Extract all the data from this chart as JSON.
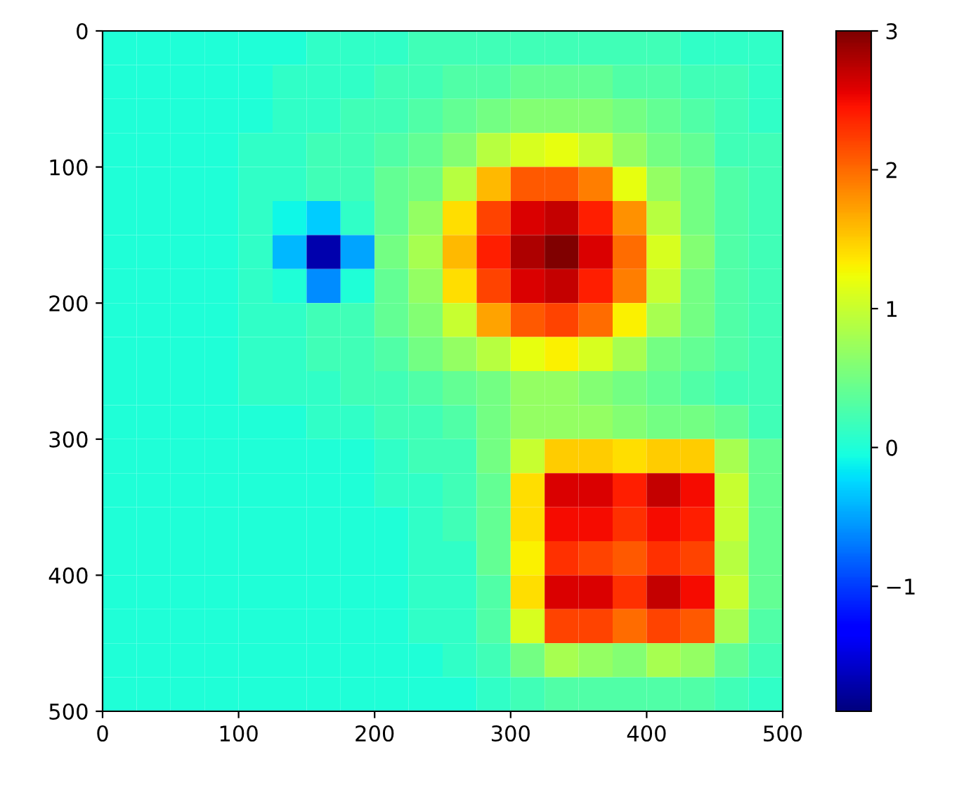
{
  "chart_data": {
    "type": "heatmap",
    "xlim": [
      0,
      500
    ],
    "ylim": [
      500,
      0
    ],
    "xticks": [
      0,
      100,
      200,
      300,
      400,
      500
    ],
    "yticks": [
      0,
      100,
      200,
      300,
      400,
      500
    ],
    "clim": [
      -1.9,
      3
    ],
    "cticks": [
      {
        "value": -1,
        "label": "−1"
      },
      0,
      1,
      2,
      3
    ],
    "grid": false,
    "cells": [
      [
        0,
        0,
        0,
        0,
        0,
        0,
        0.1,
        0.1,
        0.1,
        0.2,
        0.2,
        0.2,
        0.2,
        0.2,
        0.2,
        0.2,
        0.2,
        0.1,
        0.1,
        0.1
      ],
      [
        0,
        0,
        0,
        0,
        0,
        0.1,
        0.1,
        0.1,
        0.2,
        0.2,
        0.3,
        0.3,
        0.4,
        0.4,
        0.4,
        0.3,
        0.3,
        0.2,
        0.2,
        0.1
      ],
      [
        0,
        0,
        0,
        0,
        0,
        0.1,
        0.1,
        0.2,
        0.2,
        0.3,
        0.4,
        0.5,
        0.6,
        0.6,
        0.6,
        0.5,
        0.4,
        0.3,
        0.2,
        0.1
      ],
      [
        0,
        0,
        0,
        0,
        0.1,
        0.1,
        0.2,
        0.2,
        0.3,
        0.4,
        0.6,
        0.9,
        1.1,
        1.2,
        1.0,
        0.7,
        0.5,
        0.4,
        0.2,
        0.2
      ],
      [
        0,
        0,
        0,
        0,
        0.1,
        0.1,
        0.2,
        0.2,
        0.4,
        0.5,
        0.9,
        1.6,
        2.1,
        2.1,
        1.9,
        1.2,
        0.7,
        0.5,
        0.3,
        0.2
      ],
      [
        0,
        0,
        0,
        0,
        0.1,
        -0.1,
        -0.3,
        0.1,
        0.4,
        0.7,
        1.4,
        2.2,
        2.6,
        2.7,
        2.4,
        1.8,
        0.9,
        0.5,
        0.3,
        0.2
      ],
      [
        0,
        0,
        0,
        0,
        0.1,
        -0.4,
        -1.7,
        -0.5,
        0.5,
        0.8,
        1.6,
        2.4,
        2.8,
        3.0,
        2.6,
        2.0,
        1.1,
        0.6,
        0.3,
        0.2
      ],
      [
        0,
        0,
        0,
        0,
        0.1,
        0,
        -0.6,
        0,
        0.4,
        0.7,
        1.4,
        2.2,
        2.6,
        2.7,
        2.4,
        1.9,
        1.0,
        0.5,
        0.3,
        0.2
      ],
      [
        0,
        0,
        0,
        0,
        0.1,
        0.1,
        0.2,
        0.2,
        0.4,
        0.6,
        1.0,
        1.7,
        2.1,
        2.2,
        2.0,
        1.3,
        0.8,
        0.5,
        0.3,
        0.2
      ],
      [
        0,
        0,
        0,
        0,
        0.1,
        0.1,
        0.2,
        0.2,
        0.3,
        0.5,
        0.7,
        0.9,
        1.2,
        1.3,
        1.1,
        0.8,
        0.5,
        0.4,
        0.3,
        0.2
      ],
      [
        0,
        0,
        0,
        0,
        0.1,
        0.1,
        0.1,
        0.2,
        0.2,
        0.3,
        0.4,
        0.5,
        0.7,
        0.7,
        0.6,
        0.5,
        0.4,
        0.3,
        0.2,
        0.2
      ],
      [
        0,
        0,
        0,
        0,
        0,
        0,
        0.1,
        0.1,
        0.2,
        0.2,
        0.3,
        0.5,
        0.7,
        0.7,
        0.7,
        0.6,
        0.5,
        0.5,
        0.4,
        0.2
      ],
      [
        0,
        0,
        0,
        0,
        0,
        0,
        0,
        0,
        0.1,
        0.2,
        0.2,
        0.5,
        1.0,
        1.5,
        1.5,
        1.4,
        1.5,
        1.5,
        0.8,
        0.4
      ],
      [
        0,
        0,
        0,
        0,
        0,
        0,
        0,
        0,
        0.1,
        0.1,
        0.2,
        0.4,
        1.4,
        2.6,
        2.6,
        2.4,
        2.7,
        2.5,
        1.0,
        0.4
      ],
      [
        0,
        0,
        0,
        0,
        0,
        0,
        0,
        0,
        0,
        0.1,
        0.2,
        0.4,
        1.4,
        2.5,
        2.5,
        2.3,
        2.5,
        2.4,
        1.0,
        0.4
      ],
      [
        0,
        0,
        0,
        0,
        0,
        0,
        0,
        0,
        0,
        0.1,
        0.1,
        0.4,
        1.3,
        2.3,
        2.2,
        2.1,
        2.3,
        2.2,
        0.9,
        0.4
      ],
      [
        0,
        0,
        0,
        0,
        0,
        0,
        0,
        0,
        0,
        0.1,
        0.1,
        0.3,
        1.4,
        2.6,
        2.6,
        2.3,
        2.7,
        2.5,
        1.0,
        0.4
      ],
      [
        0,
        0,
        0,
        0,
        0,
        0,
        0,
        0,
        0,
        0.1,
        0.1,
        0.3,
        1.1,
        2.2,
        2.2,
        2.0,
        2.2,
        2.1,
        0.8,
        0.3
      ],
      [
        0,
        0,
        0,
        0,
        0,
        0,
        0,
        0,
        0,
        0,
        0.1,
        0.2,
        0.5,
        0.8,
        0.7,
        0.6,
        0.8,
        0.7,
        0.4,
        0.2
      ],
      [
        0,
        0,
        0,
        0,
        0,
        0,
        0,
        0,
        0,
        0,
        0,
        0.1,
        0.2,
        0.3,
        0.3,
        0.3,
        0.3,
        0.3,
        0.2,
        0.1
      ]
    ]
  }
}
